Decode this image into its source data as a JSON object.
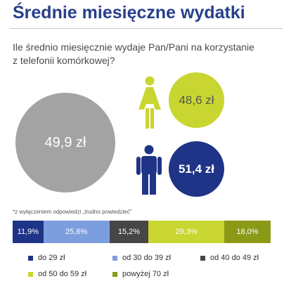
{
  "title": "Średnie miesięczne wydatki",
  "question": "Ile średnio miesięcznie wydaje Pan/Pani na korzystanie z telefonii komórkowej?",
  "circles": {
    "all": {
      "label": "49,9 zł",
      "value": 49.9,
      "color": "#a3a3a3"
    },
    "female": {
      "label": "48,6 zł",
      "value": 48.6,
      "color": "#c9d631",
      "icon": "female-person-icon"
    },
    "male": {
      "label": "51,4 zł",
      "value": 51.4,
      "color": "#1f3487",
      "icon": "male-person-icon"
    }
  },
  "footnote": "*z wyłączeniem odpowiedzi „trudno powiedzieć”",
  "chart_data": {
    "type": "bar",
    "orientation": "horizontal-stacked",
    "categories": [
      "do 29 zł",
      "od 30 do 39 zł",
      "od 40 do 49 zł",
      "od 50 do 59 zł",
      "powyżej 70 zł"
    ],
    "values": [
      11.9,
      25.6,
      15.2,
      29.3,
      18.0
    ],
    "labels": [
      "11,9%",
      "25,6%",
      "15,2%",
      "29,3%",
      "18,0%"
    ],
    "colors": [
      "#1f3487",
      "#7d9ede",
      "#464646",
      "#c9d631",
      "#8a9a16"
    ],
    "legend_position": "bottom"
  }
}
